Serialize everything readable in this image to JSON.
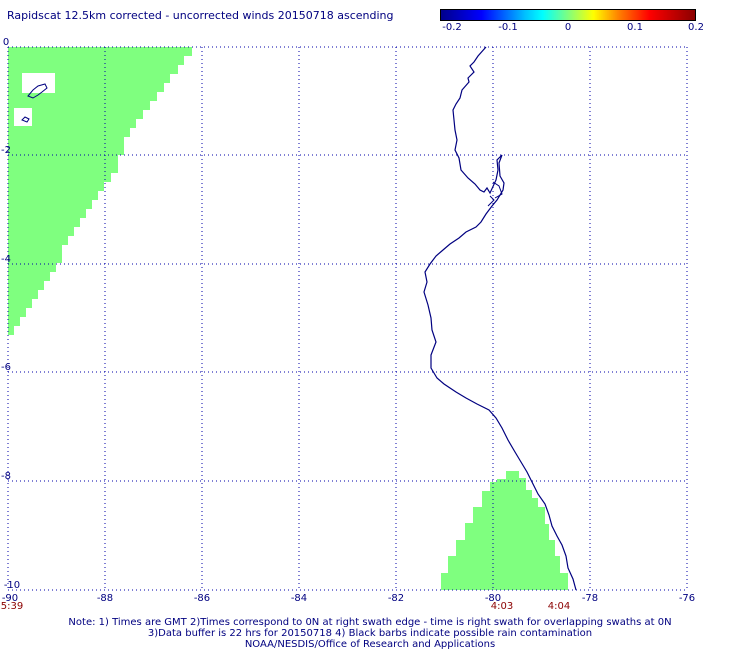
{
  "title": "Rapidscat 12.5km corrected - uncorrected winds 20150718 ascending",
  "colorbar": {
    "labels": [
      "-0.2",
      "-0.1",
      "0",
      "0.1",
      "0.2"
    ]
  },
  "map": {
    "lon_range": [
      -90,
      -76
    ],
    "lat_range": [
      -10,
      0
    ],
    "x_tick_labels": [
      "-90",
      "-88",
      "-86",
      "-84",
      "-82",
      "-80",
      "-78",
      "-76"
    ],
    "y_tick_labels": [
      "0",
      "-2",
      "-4",
      "-6",
      "-8",
      "-10"
    ],
    "swath_color": "#7fff7f",
    "coast_color": "#000080",
    "grid_color": "#0000aa",
    "time_labels": [
      {
        "text": "5:39",
        "lon": -90,
        "color": "#8b0000"
      },
      {
        "text": "4:03",
        "lon": -80.2,
        "color": "#8b0000"
      },
      {
        "text": "4:04",
        "lon": -78.8,
        "color": "#8b0000"
      }
    ]
  },
  "notes": {
    "line1": "Note: 1) Times are GMT 2)Times correspond to 0N at right swath edge - time is right swath for overlapping swaths at 0N",
    "line2": "3)Data buffer is 22 hrs for 20150718 4) Black barbs indicate possible rain contamination",
    "line3": "NOAA/NESDIS/Office of Research and Applications"
  }
}
